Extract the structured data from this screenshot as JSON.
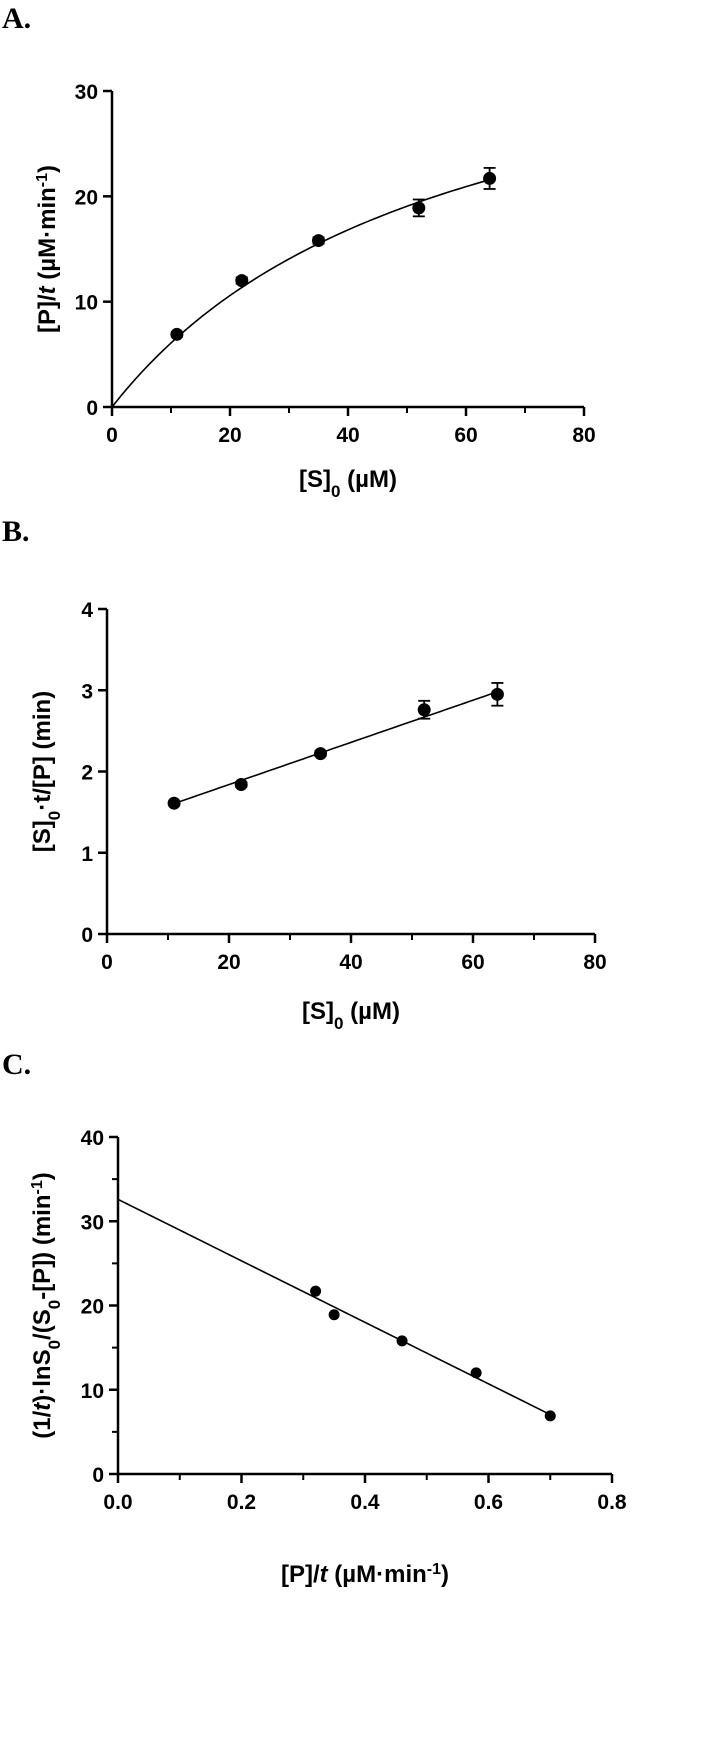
{
  "panels": [
    {
      "letter": "A."
    },
    {
      "letter": "B."
    },
    {
      "letter": "C."
    }
  ],
  "chart_data": [
    {
      "type": "scatter",
      "panel": "A.",
      "xlabel": "[S]0 (µM)",
      "ylabel": "[P]/t (µM·min-1)",
      "xlim": [
        0,
        80
      ],
      "ylim": [
        0,
        30
      ],
      "xticks": [
        0,
        20,
        40,
        60,
        80
      ],
      "yticks": [
        0,
        10,
        20,
        30
      ],
      "grid": false,
      "series": [
        {
          "x": [
            11,
            22,
            35,
            52,
            64
          ],
          "y": [
            6.9,
            12.0,
            15.8,
            18.9,
            21.7
          ],
          "error": [
            0.2,
            0.3,
            0.3,
            0.8,
            1.0
          ]
        }
      ],
      "fit": {
        "model": "michaelis-menten",
        "vmax": 40.9,
        "km": 57.3,
        "x_range": [
          0,
          64
        ]
      }
    },
    {
      "type": "scatter",
      "panel": "B.",
      "xlabel": "[S]0 (µM)",
      "ylabel": "[S]0·t/[P] (min)",
      "xlim": [
        0,
        80
      ],
      "ylim": [
        0,
        4
      ],
      "xticks": [
        0,
        20,
        40,
        60,
        80
      ],
      "yticks": [
        0,
        1,
        2,
        3,
        4
      ],
      "grid": false,
      "series": [
        {
          "x": [
            11,
            22,
            35,
            52,
            64
          ],
          "y": [
            1.61,
            1.84,
            2.22,
            2.76,
            2.95
          ],
          "error": [
            0.02,
            0.03,
            0.03,
            0.11,
            0.14
          ]
        }
      ],
      "fit": {
        "model": "linear",
        "slope": 0.02596,
        "intercept": 1.32,
        "x_range": [
          11,
          64
        ]
      }
    },
    {
      "type": "scatter",
      "panel": "C.",
      "xlabel": "[P]/t (µM·min-1)",
      "ylabel": "(1/t)·lnS0/(S0-[P]) (min-1)",
      "xlim": [
        0,
        0.8
      ],
      "ylim": [
        0,
        40
      ],
      "xticks": [
        0.0,
        0.2,
        0.4,
        0.6,
        0.8
      ],
      "yticks": [
        0,
        10,
        20,
        30,
        40
      ],
      "grid": false,
      "series": [
        {
          "x": [
            0.32,
            0.35,
            0.46,
            0.58,
            0.7
          ],
          "y": [
            21.7,
            18.9,
            15.8,
            12.0,
            6.9
          ]
        }
      ],
      "fit": {
        "model": "linear",
        "slope": -36.5,
        "intercept": 32.6,
        "x_range": [
          0,
          0.7
        ]
      }
    }
  ]
}
